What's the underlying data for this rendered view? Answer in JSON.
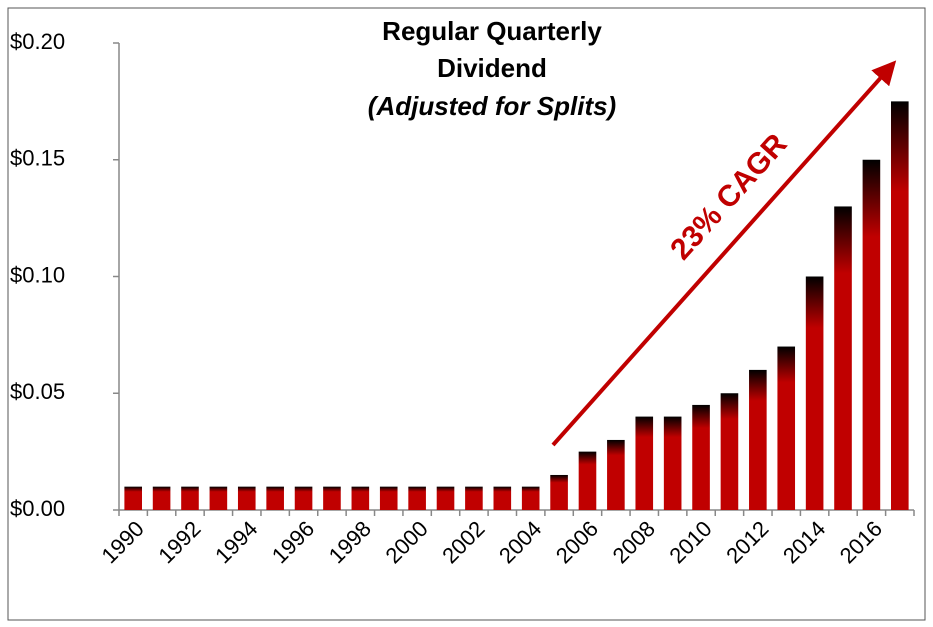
{
  "chart_data": {
    "type": "bar",
    "title": [
      "Regular Quarterly",
      "Dividend",
      "(Adjusted for Splits)"
    ],
    "annotation": "23% CAGR",
    "categories": [
      "1990",
      null,
      "1992",
      null,
      "1994",
      null,
      "1996",
      null,
      "1998",
      null,
      "2000",
      null,
      "2002",
      null,
      "2004",
      null,
      "2006",
      null,
      "2008",
      null,
      "2010",
      null,
      "2012",
      null,
      "2014",
      null,
      "2016",
      null
    ],
    "values": [
      0.01,
      0.01,
      0.01,
      0.01,
      0.01,
      0.01,
      0.01,
      0.01,
      0.01,
      0.01,
      0.01,
      0.01,
      0.01,
      0.01,
      0.01,
      0.015,
      0.025,
      0.03,
      0.04,
      0.04,
      0.045,
      0.05,
      0.06,
      0.07,
      0.1,
      0.13,
      0.15,
      0.175
    ],
    "color": "#c00000",
    "ylim": [
      0,
      0.2
    ],
    "yticks": [
      {
        "value": 0,
        "label": "$0.00"
      },
      {
        "value": 0.05,
        "label": "$0.05"
      },
      {
        "value": 0.1,
        "label": "$0.10"
      },
      {
        "value": 0.15,
        "label": "$0.15"
      },
      {
        "value": 0.2,
        "label": "$0.20"
      }
    ],
    "grid": false
  }
}
